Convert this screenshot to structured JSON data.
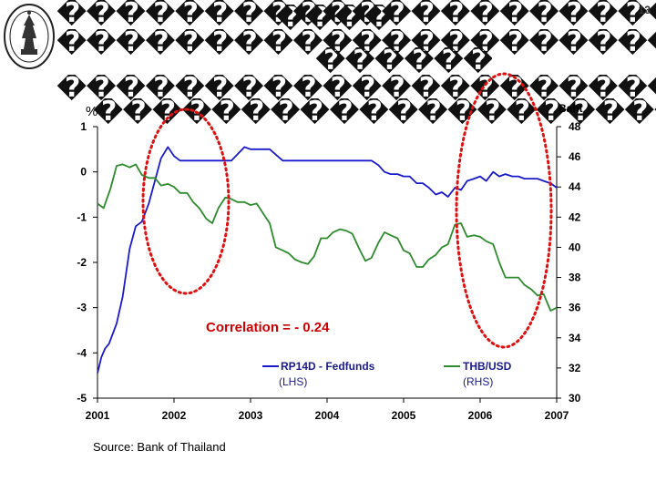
{
  "slide": {
    "page_number": "13",
    "title_lines": [
      "������������������������������",
      "����",
      "��������������������������������",
      "������",
      "��������������������������������",
      "��������������������������������"
    ],
    "source": "Source: Bank of Thailand"
  },
  "chart_data": {
    "type": "line",
    "x_ticks": [
      "2001",
      "2002",
      "2003",
      "2004",
      "2005",
      "2006",
      "2007"
    ],
    "x_range": [
      2001,
      2007
    ],
    "y_left": {
      "unit": "%",
      "ylim": [
        -5,
        1
      ],
      "ticks": [
        "1",
        "0",
        "-1",
        "-2",
        "-3",
        "-4",
        "-5"
      ]
    },
    "y_right": {
      "unit": "Baht",
      "ylim": [
        30,
        48
      ],
      "ticks": [
        "48",
        "46",
        "44",
        "42",
        "40",
        "38",
        "36",
        "34",
        "32",
        "30"
      ]
    },
    "annotation": "Correlation = - 0.24",
    "series": [
      {
        "name": "RP14D - Fedfunds",
        "axis_note": "(LHS)",
        "axis": "left",
        "color": "#1a1acc",
        "x": [
          2001.0,
          2001.05,
          2001.1,
          2001.15,
          2001.25,
          2001.33,
          2001.42,
          2001.5,
          2001.58,
          2001.67,
          2001.75,
          2001.83,
          2001.92,
          2002.0,
          2002.08,
          2002.17,
          2002.3,
          2002.5,
          2002.75,
          2002.92,
          2003.0,
          2003.08,
          2003.17,
          2003.25,
          2003.42,
          2003.5,
          2003.67,
          2003.92,
          2004.17,
          2004.25,
          2004.42,
          2004.5,
          2004.58,
          2004.67,
          2004.75,
          2004.83,
          2004.92,
          2005.0,
          2005.08,
          2005.17,
          2005.25,
          2005.33,
          2005.42,
          2005.5,
          2005.58,
          2005.67,
          2005.75,
          2005.83,
          2005.92,
          2006.0,
          2006.08,
          2006.17,
          2006.25,
          2006.33,
          2006.42,
          2006.5,
          2006.58,
          2006.67,
          2006.75,
          2006.83,
          2006.92,
          2007.0
        ],
        "y": [
          -4.45,
          -4.1,
          -3.9,
          -3.8,
          -3.35,
          -2.75,
          -1.7,
          -1.2,
          -1.1,
          -0.7,
          -0.2,
          0.3,
          0.55,
          0.35,
          0.25,
          0.25,
          0.25,
          0.25,
          0.25,
          0.55,
          0.5,
          0.5,
          0.5,
          0.5,
          0.25,
          0.25,
          0.25,
          0.25,
          0.25,
          0.25,
          0.25,
          0.25,
          0.25,
          0.15,
          0.0,
          -0.05,
          -0.05,
          -0.1,
          -0.1,
          -0.25,
          -0.25,
          -0.35,
          -0.5,
          -0.45,
          -0.55,
          -0.35,
          -0.4,
          -0.2,
          -0.15,
          -0.1,
          -0.2,
          0.0,
          -0.1,
          -0.05,
          -0.1,
          -0.1,
          -0.15,
          -0.15,
          -0.15,
          -0.2,
          -0.25,
          -0.35
        ]
      },
      {
        "name": "THB/USD",
        "axis_note": "(RHS)",
        "axis": "right",
        "color": "#2e8b2e",
        "x": [
          2001.0,
          2001.08,
          2001.17,
          2001.25,
          2001.33,
          2001.42,
          2001.5,
          2001.58,
          2001.67,
          2001.75,
          2001.83,
          2001.92,
          2002.0,
          2002.08,
          2002.17,
          2002.25,
          2002.33,
          2002.42,
          2002.5,
          2002.58,
          2002.67,
          2002.75,
          2002.83,
          2002.92,
          2003.0,
          2003.08,
          2003.17,
          2003.25,
          2003.33,
          2003.42,
          2003.5,
          2003.58,
          2003.67,
          2003.75,
          2003.83,
          2003.92,
          2004.0,
          2004.08,
          2004.17,
          2004.25,
          2004.33,
          2004.42,
          2004.5,
          2004.58,
          2004.67,
          2004.75,
          2004.83,
          2004.92,
          2005.0,
          2005.08,
          2005.17,
          2005.25,
          2005.33,
          2005.42,
          2005.5,
          2005.58,
          2005.67,
          2005.75,
          2005.83,
          2005.92,
          2006.0,
          2006.08,
          2006.17,
          2006.25,
          2006.33,
          2006.42,
          2006.5,
          2006.58,
          2006.67,
          2006.75,
          2006.83,
          2006.92,
          2007.0
        ],
        "y": [
          42.9,
          42.6,
          43.9,
          45.4,
          45.5,
          45.3,
          45.5,
          44.8,
          44.6,
          44.6,
          44.1,
          44.2,
          44.0,
          43.6,
          43.6,
          43.0,
          42.6,
          41.9,
          41.6,
          42.6,
          43.3,
          43.2,
          43.0,
          43.0,
          42.8,
          42.9,
          42.2,
          41.6,
          40.0,
          39.8,
          39.6,
          39.2,
          39.0,
          38.9,
          39.4,
          40.6,
          40.6,
          41.0,
          41.2,
          41.1,
          40.9,
          39.9,
          39.1,
          39.3,
          40.3,
          41.0,
          40.8,
          40.6,
          39.8,
          39.6,
          38.7,
          38.7,
          39.2,
          39.5,
          40.0,
          40.2,
          41.5,
          41.6,
          40.7,
          40.8,
          40.7,
          40.4,
          40.2,
          39.0,
          38.0,
          38.0,
          38.0,
          37.5,
          37.2,
          36.8,
          36.9,
          35.8,
          36.0
        ]
      }
    ]
  }
}
